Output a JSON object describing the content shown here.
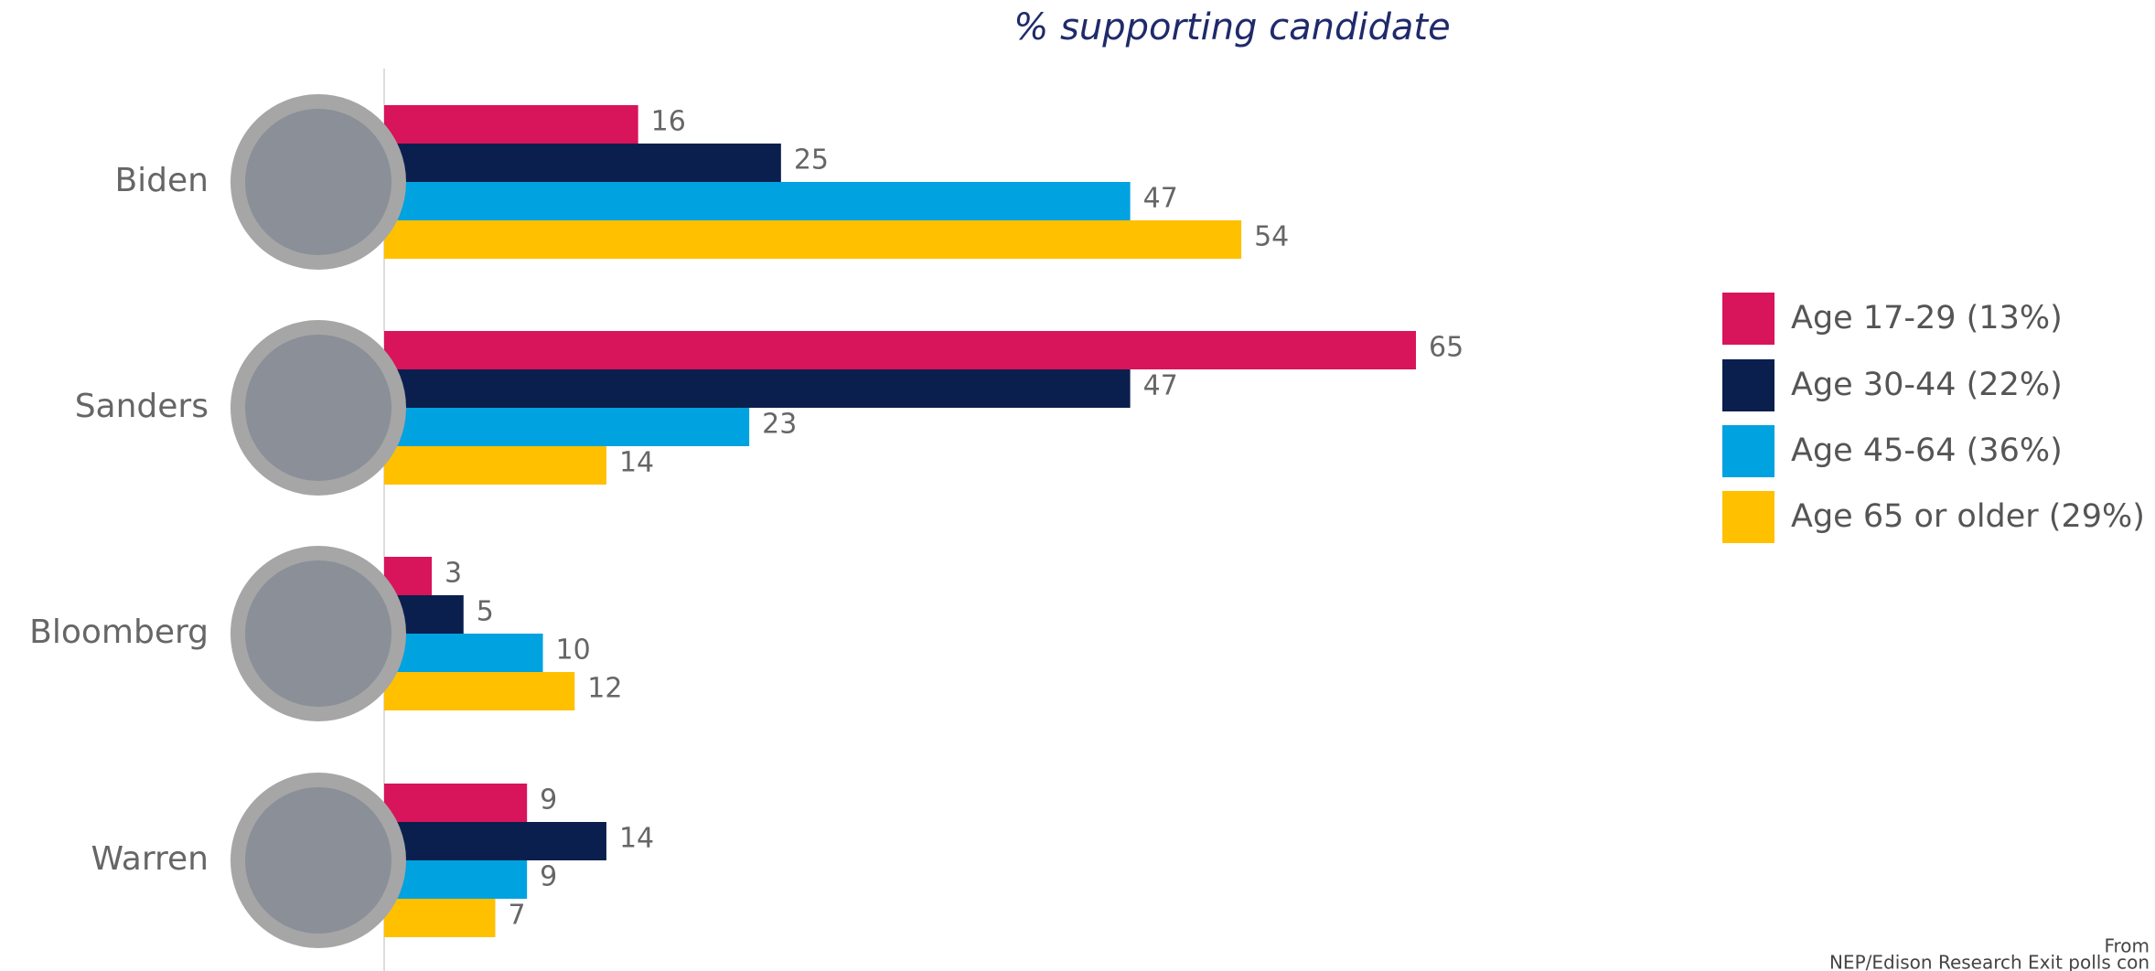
{
  "chart_data": {
    "type": "bar",
    "orientation": "horizontal",
    "title": "% supporting candidate",
    "categories": [
      "Biden",
      "Sanders",
      "Bloomberg",
      "Warren"
    ],
    "series": [
      {
        "name": "Age 17-29 (13%)",
        "color": "#d8145b",
        "values": [
          16,
          65,
          3,
          9
        ]
      },
      {
        "name": "Age 30-44 (22%)",
        "color": "#0b1f4f",
        "values": [
          25,
          47,
          5,
          14
        ]
      },
      {
        "name": "Age 45-64 (36%)",
        "color": "#00a2df",
        "values": [
          47,
          23,
          10,
          9
        ]
      },
      {
        "name": "Age 65 or older (29%)",
        "color": "#ffc000",
        "values": [
          54,
          14,
          12,
          7
        ]
      }
    ],
    "source": [
      "From",
      "NEP/Edison Research Exit polls con"
    ]
  }
}
